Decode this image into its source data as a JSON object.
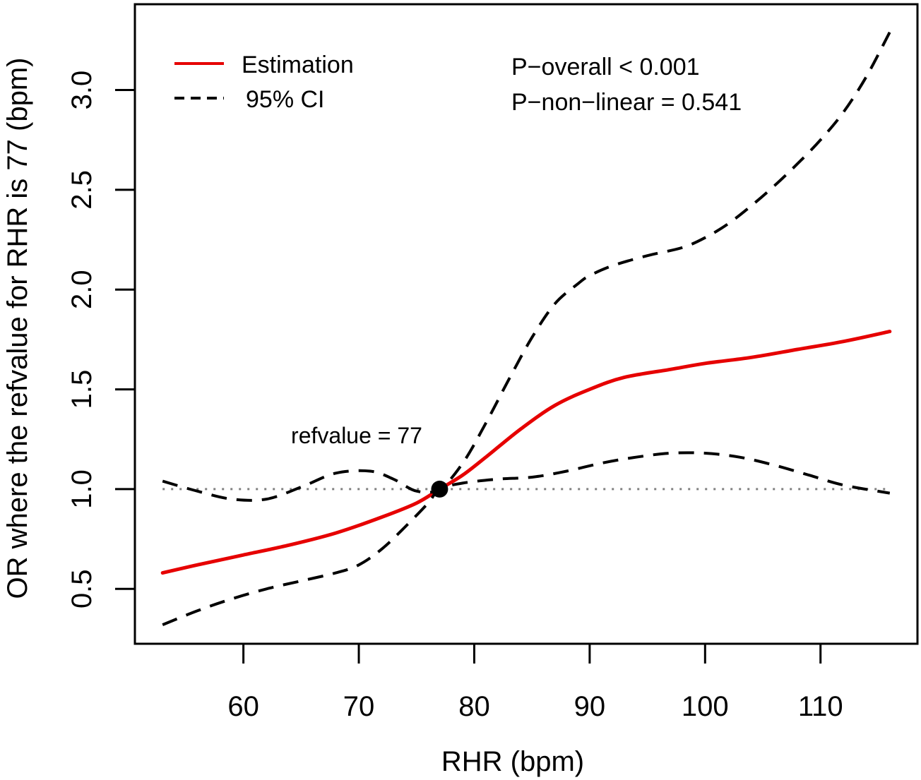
{
  "chart_data": {
    "type": "line",
    "xlabel": "RHR (bpm)",
    "ylabel": "OR where the refvalue for RHR is 77 (bpm)",
    "xlim": [
      50.6,
      118.4
    ],
    "ylim": [
      0.225,
      3.43
    ],
    "x_ticks": [
      60,
      70,
      80,
      90,
      100,
      110
    ],
    "x_tick_labels": [
      "60",
      "70",
      "80",
      "90",
      "100",
      "110"
    ],
    "y_ticks": [
      0.5,
      1.0,
      1.5,
      2.0,
      2.5,
      3.0
    ],
    "y_tick_labels": [
      "0.5",
      "1.0",
      "1.5",
      "2.0",
      "2.5",
      "3.0"
    ],
    "reference_line": {
      "y": 1.0,
      "style": "dotted",
      "color": "#808080"
    },
    "reference_point": {
      "x": 77,
      "y": 1.0,
      "label": "refvalue = 77"
    },
    "legend": {
      "position": "top-left",
      "entries": [
        {
          "label": "Estimation",
          "style": "solid",
          "color": "#e60000"
        },
        {
          "label": "95% CI",
          "style": "dashed",
          "color": "#000000"
        }
      ]
    },
    "annotations": [
      "P−overall < 0.001",
      "P−non−linear = 0.541"
    ],
    "series": [
      {
        "name": "Estimation",
        "style": "solid",
        "color": "#e60000",
        "x": [
          53,
          56,
          60,
          64,
          68,
          72,
          75,
          77,
          79,
          81,
          84,
          87,
          90,
          93,
          97,
          100,
          104,
          108,
          112,
          116
        ],
        "y": [
          0.58,
          0.62,
          0.67,
          0.72,
          0.78,
          0.86,
          0.93,
          1.0,
          1.07,
          1.16,
          1.3,
          1.42,
          1.5,
          1.56,
          1.6,
          1.63,
          1.66,
          1.7,
          1.74,
          1.79
        ]
      },
      {
        "name": "95% CI upper",
        "style": "dashed",
        "color": "#000000",
        "x": [
          53,
          56,
          59,
          62,
          65,
          68,
          71,
          73,
          75,
          77,
          79,
          81,
          83,
          85,
          87,
          89,
          90,
          92,
          95,
          98,
          100,
          102,
          104,
          106,
          108,
          110,
          112,
          114,
          116
        ],
        "y": [
          1.04,
          0.99,
          0.95,
          0.95,
          1.01,
          1.08,
          1.09,
          1.05,
          0.99,
          1.0,
          1.13,
          1.33,
          1.55,
          1.76,
          1.93,
          2.03,
          2.07,
          2.12,
          2.17,
          2.21,
          2.26,
          2.33,
          2.42,
          2.52,
          2.63,
          2.75,
          2.89,
          3.07,
          3.29
        ]
      },
      {
        "name": "95% CI lower",
        "style": "dashed",
        "color": "#000000",
        "x": [
          53,
          56,
          59,
          62,
          65,
          68,
          70,
          72,
          74,
          76,
          77,
          79,
          82,
          85,
          88,
          91,
          94,
          97,
          100,
          103,
          106,
          109,
          112,
          116
        ],
        "y": [
          0.32,
          0.39,
          0.45,
          0.5,
          0.54,
          0.58,
          0.62,
          0.7,
          0.81,
          0.93,
          1.0,
          1.03,
          1.05,
          1.06,
          1.09,
          1.13,
          1.16,
          1.18,
          1.18,
          1.16,
          1.12,
          1.07,
          1.02,
          0.98
        ]
      }
    ]
  }
}
